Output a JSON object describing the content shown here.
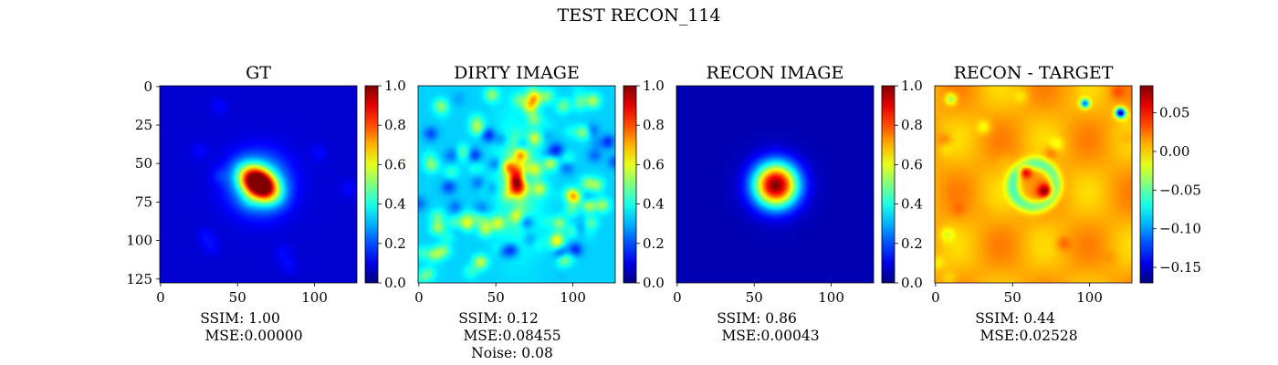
{
  "figure": {
    "suptitle": "TEST RECON_114"
  },
  "chart_data": [
    {
      "type": "heatmap",
      "title": "GT",
      "colormap": "jet",
      "image_size": [
        128,
        128
      ],
      "xticks": [
        0,
        50,
        100
      ],
      "yticks": [
        0,
        25,
        50,
        75,
        100,
        125
      ],
      "show_yticks": true,
      "colorbar": {
        "range": [
          0.0,
          1.0
        ],
        "ticks": [
          "0.0",
          "0.2",
          "0.4",
          "0.6",
          "0.8",
          "1.0"
        ]
      },
      "blob": {
        "center_x": 64,
        "center_y": 63,
        "peak": 1.0,
        "shape": "elongated"
      },
      "metrics": [
        "SSIM: 1.00",
        "MSE:0.00000"
      ]
    },
    {
      "type": "heatmap",
      "title": "DIRTY IMAGE",
      "colormap": "jet",
      "image_size": [
        128,
        128
      ],
      "xticks": [
        0,
        50,
        100
      ],
      "show_yticks": false,
      "colorbar": {
        "range": [
          0.0,
          1.0
        ],
        "ticks": [
          "0.0",
          "0.2",
          "0.4",
          "0.6",
          "0.8",
          "1.0"
        ]
      },
      "blob": {
        "center_x": 64,
        "center_y": 62,
        "peak": 0.95,
        "shape": "noisy"
      },
      "metrics": [
        "SSIM: 0.12",
        "MSE:0.08455",
        "Noise: 0.08"
      ]
    },
    {
      "type": "heatmap",
      "title": "RECON IMAGE",
      "colormap": "jet",
      "image_size": [
        128,
        128
      ],
      "xticks": [
        0,
        50,
        100
      ],
      "show_yticks": false,
      "colorbar": {
        "range": [
          0.0,
          1.0
        ],
        "ticks": [
          "0.0",
          "0.2",
          "0.4",
          "0.6",
          "0.8",
          "1.0"
        ]
      },
      "blob": {
        "center_x": 64,
        "center_y": 64,
        "peak": 1.0,
        "shape": "round"
      },
      "metrics": [
        "SSIM: 0.86",
        "MSE:0.00043"
      ]
    },
    {
      "type": "heatmap",
      "title": "RECON - TARGET",
      "colormap": "jet",
      "image_size": [
        128,
        128
      ],
      "xticks": [
        0,
        50,
        100
      ],
      "show_yticks": false,
      "colorbar": {
        "range": [
          -0.17,
          0.085
        ],
        "ticks": [
          "0.05",
          "0.00",
          "−0.05",
          "−0.10",
          "−0.15"
        ],
        "tick_values": [
          0.05,
          0.0,
          -0.05,
          -0.1,
          -0.15
        ]
      },
      "blob": {
        "center_x": 64,
        "center_y": 64,
        "peak": 0.085,
        "shape": "residual"
      },
      "metrics": [
        "SSIM: 0.44",
        "MSE:0.02528"
      ]
    }
  ]
}
